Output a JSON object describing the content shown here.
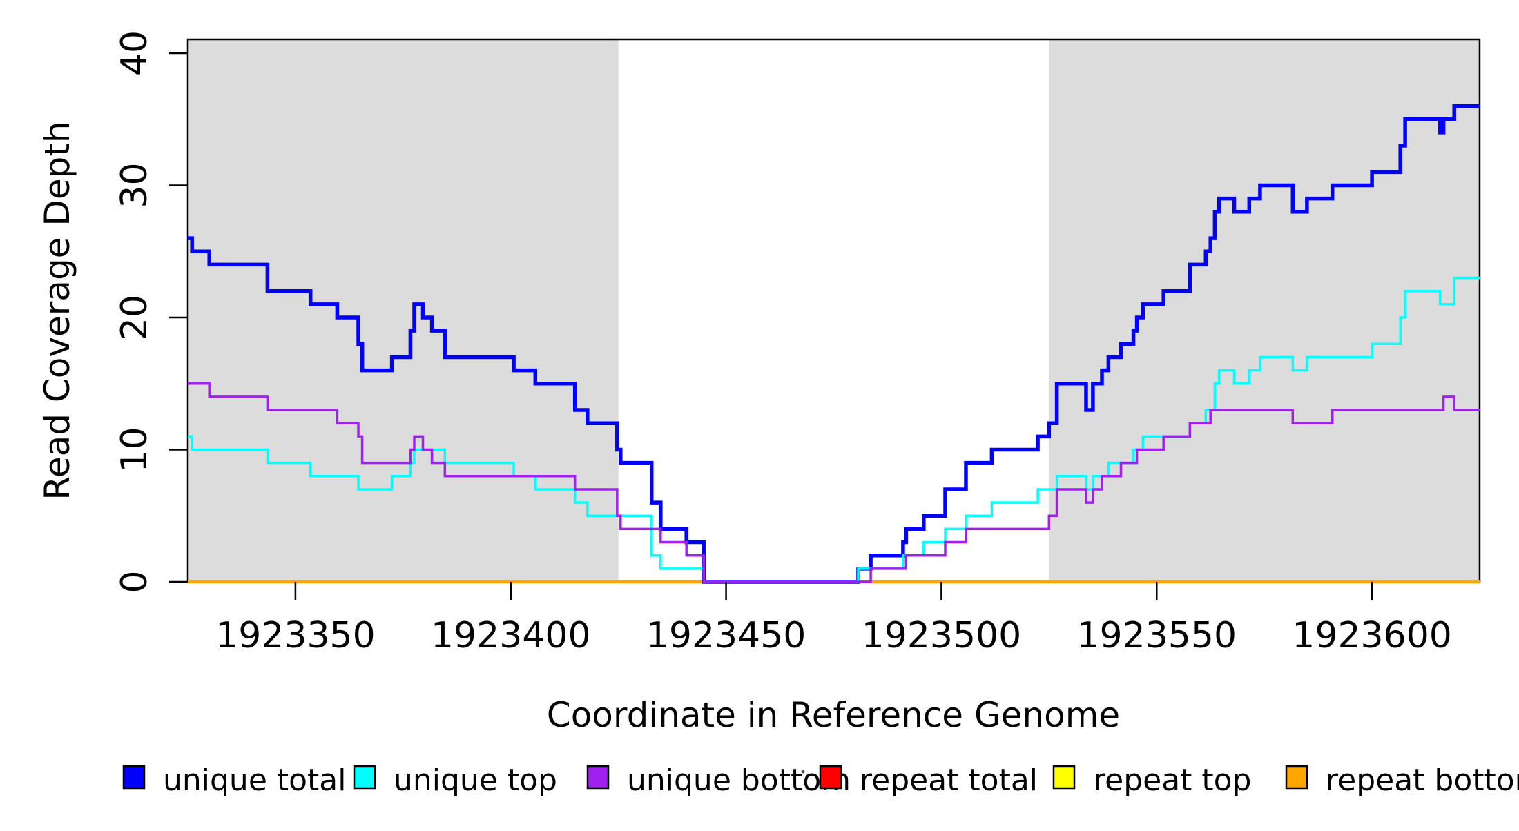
{
  "chart_data": {
    "type": "line",
    "subtype": "step",
    "title": "",
    "xlabel": "Coordinate in Reference Genome",
    "ylabel": "Read Coverage Depth",
    "xlim": [
      1923325,
      1923625
    ],
    "ylim": [
      0,
      40
    ],
    "x_ticks": [
      1923350,
      1923400,
      1923450,
      1923500,
      1923550,
      1923600
    ],
    "y_ticks": [
      0,
      10,
      20,
      30,
      40
    ],
    "grid": false,
    "legend_position": "bottom",
    "shaded_regions": [
      {
        "from": 1923325,
        "to": 1923425,
        "color": "#DCDCDC"
      },
      {
        "from": 1923525,
        "to": 1923625,
        "color": "#DCDCDC"
      }
    ],
    "series": [
      {
        "name": "repeat total",
        "color": "#FF0000",
        "width": 3.5,
        "points": [
          [
            1923325,
            0
          ]
        ]
      },
      {
        "name": "repeat top",
        "color": "#FFFF00",
        "width": 3.5,
        "points": [
          [
            1923325,
            0
          ]
        ]
      },
      {
        "name": "repeat bottom",
        "color": "#FFA500",
        "width": 4.5,
        "points": [
          [
            1923325,
            0
          ]
        ]
      },
      {
        "name": "unique total",
        "color": "#0000FF",
        "width": 5.5,
        "points": [
          [
            1923325,
            26
          ],
          [
            1923326,
            25
          ],
          [
            1923330,
            24
          ],
          [
            1923343.5,
            22
          ],
          [
            1923353.5,
            21
          ],
          [
            1923359.7,
            20
          ],
          [
            1923364.6,
            18
          ],
          [
            1923365.5,
            16
          ],
          [
            1923372.4,
            17
          ],
          [
            1923376.7,
            19
          ],
          [
            1923377.6,
            21
          ],
          [
            1923379.6,
            20
          ],
          [
            1923381.7,
            19
          ],
          [
            1923384.7,
            17
          ],
          [
            1923400.7,
            16
          ],
          [
            1923405.7,
            15
          ],
          [
            1923414.9,
            13
          ],
          [
            1923417.8,
            12
          ],
          [
            1923424.7,
            10
          ],
          [
            1923425.5,
            9
          ],
          [
            1923432.7,
            6
          ],
          [
            1923434.8,
            4
          ],
          [
            1923440.8,
            3
          ],
          [
            1923444.8,
            0
          ],
          [
            1923480.7,
            1
          ],
          [
            1923483.6,
            2
          ],
          [
            1923491.1,
            3
          ],
          [
            1923491.8,
            4
          ],
          [
            1923495.9,
            5
          ],
          [
            1923500.9,
            7
          ],
          [
            1923505.7,
            9
          ],
          [
            1923511.7,
            10
          ],
          [
            1923522.4,
            11
          ],
          [
            1923525,
            12
          ],
          [
            1923526.8,
            15
          ],
          [
            1923533.6,
            13
          ],
          [
            1923535.2,
            15
          ],
          [
            1923537.3,
            16
          ],
          [
            1923538.8,
            17
          ],
          [
            1923541.7,
            18
          ],
          [
            1923544.6,
            19
          ],
          [
            1923545.4,
            20
          ],
          [
            1923546.8,
            21
          ],
          [
            1923551.6,
            22
          ],
          [
            1923557.7,
            24
          ],
          [
            1923561.4,
            25
          ],
          [
            1923562.5,
            26
          ],
          [
            1923563.5,
            28
          ],
          [
            1923564.5,
            29
          ],
          [
            1923568,
            28
          ],
          [
            1923571.5,
            29
          ],
          [
            1923574,
            30
          ],
          [
            1923581.6,
            28
          ],
          [
            1923584.9,
            29
          ],
          [
            1923590.8,
            30
          ],
          [
            1923600,
            31
          ],
          [
            1923606.6,
            33
          ],
          [
            1923607.7,
            35
          ],
          [
            1923615.8,
            34
          ],
          [
            1923616.6,
            35
          ],
          [
            1923619.1,
            36
          ]
        ]
      },
      {
        "name": "unique top",
        "color": "#00FFFF",
        "width": 3.5,
        "points": [
          [
            1923325,
            11
          ],
          [
            1923326,
            10
          ],
          [
            1923343.5,
            9
          ],
          [
            1923353.5,
            8
          ],
          [
            1923364.6,
            7
          ],
          [
            1923372.4,
            8
          ],
          [
            1923376.7,
            9
          ],
          [
            1923377.6,
            10
          ],
          [
            1923384.7,
            9
          ],
          [
            1923400.7,
            8
          ],
          [
            1923405.7,
            7
          ],
          [
            1923414.9,
            6
          ],
          [
            1923417.8,
            5
          ],
          [
            1923432.7,
            2
          ],
          [
            1923434.8,
            1
          ],
          [
            1923444.8,
            0
          ],
          [
            1923480.7,
            1
          ],
          [
            1923491.1,
            2
          ],
          [
            1923495.9,
            3
          ],
          [
            1923500.9,
            4
          ],
          [
            1923505.7,
            5
          ],
          [
            1923511.7,
            6
          ],
          [
            1923522.4,
            7
          ],
          [
            1923526.8,
            8
          ],
          [
            1923533.6,
            7
          ],
          [
            1923535.2,
            8
          ],
          [
            1923538.8,
            9
          ],
          [
            1923544.6,
            10
          ],
          [
            1923546.8,
            11
          ],
          [
            1923557.7,
            12
          ],
          [
            1923561.4,
            13
          ],
          [
            1923563.5,
            15
          ],
          [
            1923564.5,
            16
          ],
          [
            1923568,
            15
          ],
          [
            1923571.5,
            16
          ],
          [
            1923574,
            17
          ],
          [
            1923581.6,
            16
          ],
          [
            1923584.9,
            17
          ],
          [
            1923600,
            18
          ],
          [
            1923606.6,
            20
          ],
          [
            1923607.7,
            22
          ],
          [
            1923615.8,
            21
          ],
          [
            1923619.1,
            23
          ]
        ]
      },
      {
        "name": "unique bottom",
        "color": "#A020F0",
        "width": 3.5,
        "points": [
          [
            1923325,
            15
          ],
          [
            1923330,
            14
          ],
          [
            1923343.5,
            13
          ],
          [
            1923359.7,
            12
          ],
          [
            1923364.6,
            11
          ],
          [
            1923365.5,
            9
          ],
          [
            1923376.7,
            10
          ],
          [
            1923377.6,
            11
          ],
          [
            1923379.6,
            10
          ],
          [
            1923381.7,
            9
          ],
          [
            1923384.7,
            8
          ],
          [
            1923414.9,
            7
          ],
          [
            1923424.7,
            5
          ],
          [
            1923425.5,
            4
          ],
          [
            1923434.8,
            3
          ],
          [
            1923440.8,
            2
          ],
          [
            1923444.8,
            0
          ],
          [
            1923483.6,
            1
          ],
          [
            1923491.8,
            2
          ],
          [
            1923500.9,
            3
          ],
          [
            1923505.7,
            4
          ],
          [
            1923525,
            5
          ],
          [
            1923526.8,
            7
          ],
          [
            1923533.6,
            6
          ],
          [
            1923535.2,
            7
          ],
          [
            1923537.3,
            8
          ],
          [
            1923541.7,
            9
          ],
          [
            1923545.4,
            10
          ],
          [
            1923551.6,
            11
          ],
          [
            1923557.7,
            12
          ],
          [
            1923562.5,
            13
          ],
          [
            1923581.6,
            12
          ],
          [
            1923590.8,
            13
          ],
          [
            1923616.6,
            14
          ],
          [
            1923619.1,
            13
          ]
        ]
      }
    ],
    "legend": [
      {
        "label": "unique total",
        "color": "#0000FF"
      },
      {
        "label": "unique top",
        "color": "#00FFFF"
      },
      {
        "label": "unique bottom",
        "color": "#A020F0"
      },
      {
        "label": "repeat total",
        "color": "#FF0000"
      },
      {
        "label": "repeat top",
        "color": "#FFFF00"
      },
      {
        "label": "repeat bottom",
        "color": "#FFA500"
      }
    ]
  }
}
